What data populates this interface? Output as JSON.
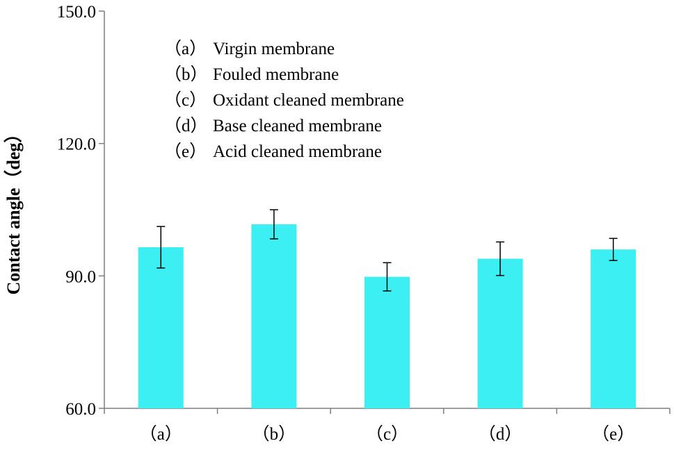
{
  "chart_data": {
    "type": "bar",
    "categories": [
      "（a）",
      "（b）",
      "（c）",
      "（d）",
      "（e）"
    ],
    "values": [
      96.5,
      101.7,
      89.8,
      93.9,
      96.0
    ],
    "errors": [
      4.7,
      3.3,
      3.2,
      3.8,
      2.5
    ],
    "title": "",
    "xlabel": "",
    "ylabel": "Contact angle（deg）",
    "ylim": [
      60,
      150
    ],
    "yticks": [
      "60.0",
      "90.0",
      "120.0",
      "150.0"
    ],
    "ytick_values": [
      60,
      90,
      120,
      150
    ],
    "bar_color": "#3CEFF2",
    "grid": false,
    "legend_placement": "top-left",
    "legend": [
      {
        "key": "（a）",
        "text": "Virgin membrane"
      },
      {
        "key": "（b）",
        "text": "Fouled membrane"
      },
      {
        "key": "（c）",
        "text": "Oxidant cleaned membrane"
      },
      {
        "key": "（d）",
        "text": "Base cleaned membrane"
      },
      {
        "key": "（e）",
        "text": "Acid cleaned membrane"
      }
    ]
  }
}
